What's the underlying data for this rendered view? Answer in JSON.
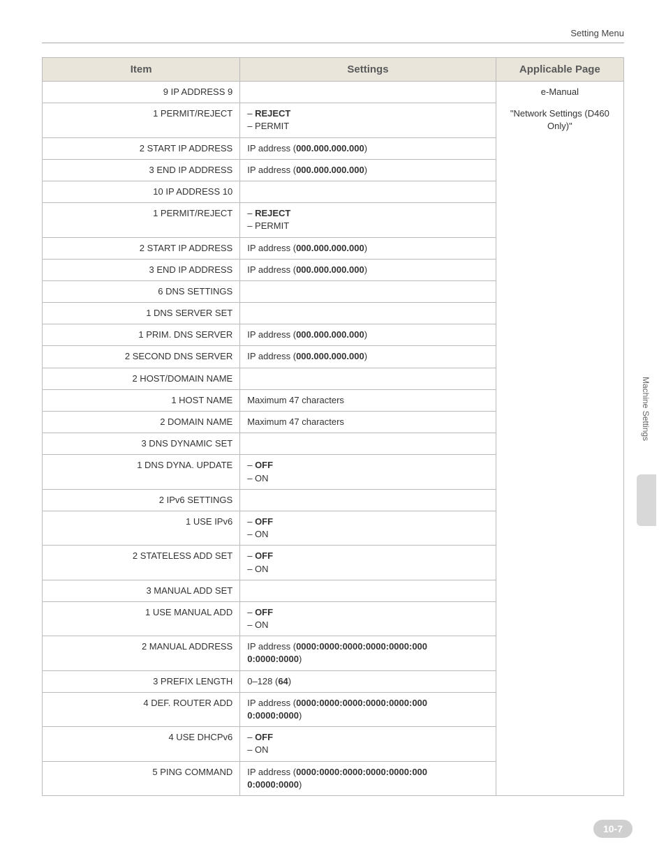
{
  "header": {
    "section": "Setting Menu"
  },
  "columns": {
    "item": "Item",
    "settings": "Settings",
    "page": "Applicable Page"
  },
  "applicable": {
    "line1": "e-Manual",
    "line2": "\"Network Settings (D460 Only)\""
  },
  "rows": [
    {
      "item": "9 IP ADDRESS 9",
      "settings": ""
    },
    {
      "item": "1 PERMIT/REJECT",
      "settings_html": "– <b>REJECT</b><br>– PERMIT"
    },
    {
      "item": "2 START IP ADDRESS",
      "settings_html": "IP address (<b>000.000.000.000</b>)"
    },
    {
      "item": "3 END IP ADDRESS",
      "settings_html": "IP address (<b>000.000.000.000</b>)"
    },
    {
      "item": "10 IP ADDRESS 10",
      "settings": ""
    },
    {
      "item": "1 PERMIT/REJECT",
      "settings_html": "– <b>REJECT</b><br>– PERMIT"
    },
    {
      "item": "2 START IP ADDRESS",
      "settings_html": "IP address (<b>000.000.000.000</b>)"
    },
    {
      "item": "3 END IP ADDRESS",
      "settings_html": "IP address (<b>000.000.000.000</b>)"
    },
    {
      "item": "6 DNS SETTINGS",
      "settings": ""
    },
    {
      "item": "1 DNS SERVER SET",
      "settings": ""
    },
    {
      "item": "1 PRIM. DNS SERVER",
      "settings_html": "IP address (<b>000.000.000.000</b>)"
    },
    {
      "item": "2 SECOND DNS SERVER",
      "settings_html": "IP address (<b>000.000.000.000</b>)"
    },
    {
      "item": "2 HOST/DOMAIN NAME",
      "settings": ""
    },
    {
      "item": "1 HOST NAME",
      "settings": "Maximum 47 characters"
    },
    {
      "item": "2 DOMAIN NAME",
      "settings": "Maximum 47 characters"
    },
    {
      "item": "3 DNS DYNAMIC SET",
      "settings": ""
    },
    {
      "item": "1 DNS DYNA. UPDATE",
      "settings_html": "– <b>OFF</b><br>– ON"
    },
    {
      "item": "2 IPv6 SETTINGS",
      "settings": ""
    },
    {
      "item": "1 USE IPv6",
      "settings_html": "– <b>OFF</b><br>– ON"
    },
    {
      "item": "2 STATELESS ADD SET",
      "settings_html": "– <b>OFF</b><br>– ON"
    },
    {
      "item": "3 MANUAL ADD SET",
      "settings": ""
    },
    {
      "item": "1 USE MANUAL ADD",
      "settings_html": "– <b>OFF</b><br>– ON"
    },
    {
      "item": "2 MANUAL ADDRESS",
      "settings_html": "IP address (<b>0000:0000:0000:0000:0000:000<br>0:0000:0000</b>)"
    },
    {
      "item": "3 PREFIX LENGTH",
      "settings_html": "0–128 (<b>64</b>)"
    },
    {
      "item": "4 DEF. ROUTER ADD",
      "settings_html": "IP address (<b>0000:0000:0000:0000:0000:000<br>0:0000:0000</b>)"
    },
    {
      "item": "4 USE DHCPv6",
      "settings_html": "– <b>OFF</b><br>– ON"
    },
    {
      "item": "5 PING COMMAND",
      "settings_html": "IP address (<b>0000:0000:0000:0000:0000:000<br>0:0000:0000</b>)"
    }
  ],
  "sidebar": {
    "label": "Machine Settings"
  },
  "footer": {
    "page": "10-7"
  },
  "style": {
    "header_bg": "#e9e5db",
    "border_color": "#bbbbbb",
    "text_color": "#333333",
    "badge_bg": "#cfcfcf"
  }
}
